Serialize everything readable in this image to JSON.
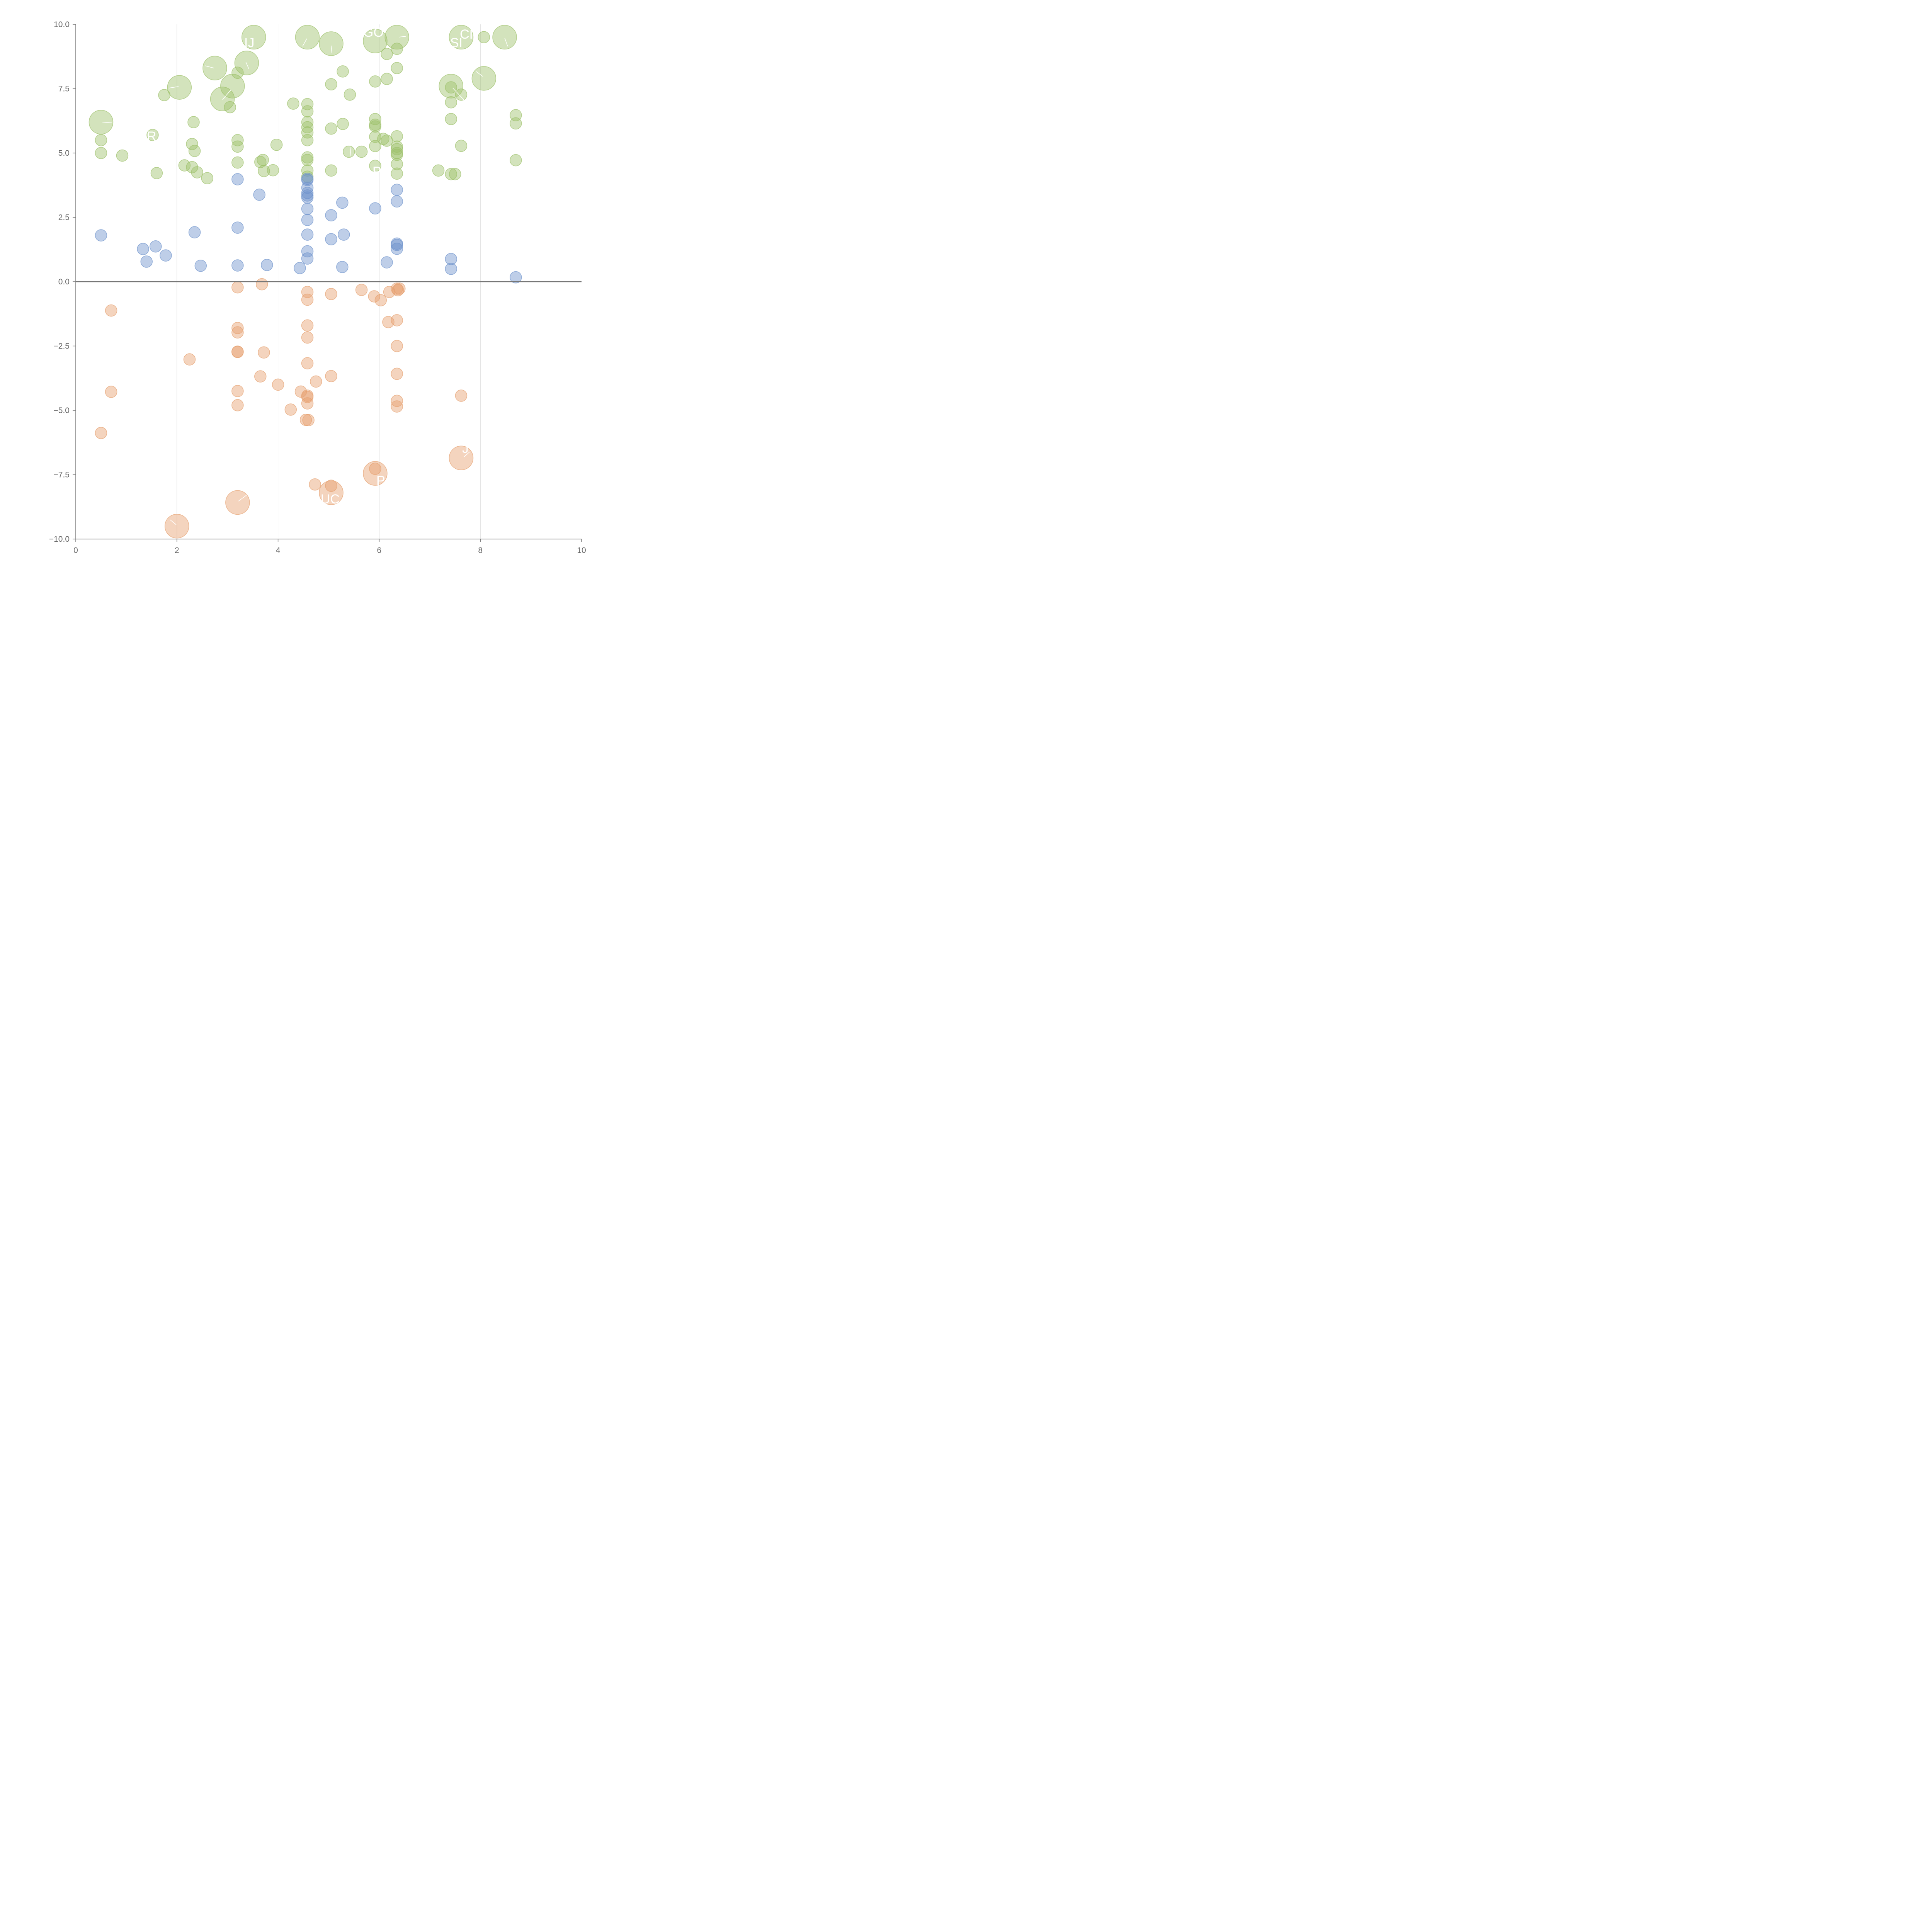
{
  "chart_data": {
    "type": "scatter",
    "title": "",
    "xlabel": "",
    "ylabel": "",
    "xlim": [
      0,
      10
    ],
    "ylim": [
      -10,
      10
    ],
    "x_ticks": [
      0,
      2,
      4,
      6,
      8,
      10
    ],
    "y_ticks": [
      -10.0,
      -7.5,
      -5.0,
      -2.5,
      0.0,
      2.5,
      5.0,
      7.5,
      10.0
    ],
    "x_tick_labels": [
      "0",
      "2",
      "4",
      "6",
      "8",
      "10"
    ],
    "y_tick_labels": [
      "−10.0",
      "−7.5",
      "−5.0",
      "−2.5",
      "0.0",
      "2.5",
      "5.0",
      "7.5",
      "10.0"
    ],
    "vertical_gridlines_at": [
      2,
      4,
      6,
      8
    ],
    "zero_line": true,
    "legend": "none",
    "colors": {
      "green": "#9dc06a",
      "blue": "#6e93cc",
      "orange": "#e6a06e"
    },
    "series": [
      {
        "color": "green",
        "points": [
          {
            "x": 0.5,
            "y": 6.2,
            "big": true
          },
          {
            "x": 2.05,
            "y": 7.55,
            "big": true
          },
          {
            "x": 2.75,
            "y": 8.3,
            "big": true
          },
          {
            "x": 2.9,
            "y": 7.1,
            "big": true
          },
          {
            "x": 3.1,
            "y": 7.6,
            "big": true
          },
          {
            "x": 3.38,
            "y": 8.5,
            "big": true
          },
          {
            "x": 3.52,
            "y": 9.5,
            "big": true
          },
          {
            "x": 4.58,
            "y": 9.5,
            "big": true
          },
          {
            "x": 5.05,
            "y": 9.25,
            "big": true
          },
          {
            "x": 5.92,
            "y": 9.35,
            "big": true
          },
          {
            "x": 6.35,
            "y": 9.5,
            "big": true
          },
          {
            "x": 7.62,
            "y": 9.5,
            "big": true
          },
          {
            "x": 8.48,
            "y": 9.5,
            "big": true
          },
          {
            "x": 7.42,
            "y": 7.6,
            "big": true
          },
          {
            "x": 8.07,
            "y": 7.9,
            "big": true
          },
          {
            "x": 0.5,
            "y": 5.5
          },
          {
            "x": 0.5,
            "y": 5.0
          },
          {
            "x": 0.92,
            "y": 4.9
          },
          {
            "x": 1.6,
            "y": 4.22
          },
          {
            "x": 1.52,
            "y": 5.7
          },
          {
            "x": 1.75,
            "y": 7.25
          },
          {
            "x": 2.15,
            "y": 4.52
          },
          {
            "x": 2.3,
            "y": 5.35
          },
          {
            "x": 2.3,
            "y": 4.45
          },
          {
            "x": 2.33,
            "y": 6.2
          },
          {
            "x": 2.35,
            "y": 5.08
          },
          {
            "x": 2.4,
            "y": 4.25
          },
          {
            "x": 2.6,
            "y": 4.02
          },
          {
            "x": 3.05,
            "y": 6.78
          },
          {
            "x": 3.2,
            "y": 8.12
          },
          {
            "x": 3.2,
            "y": 5.5
          },
          {
            "x": 3.2,
            "y": 5.25
          },
          {
            "x": 3.2,
            "y": 4.63
          },
          {
            "x": 3.65,
            "y": 4.65
          },
          {
            "x": 3.7,
            "y": 4.73
          },
          {
            "x": 3.72,
            "y": 4.3
          },
          {
            "x": 3.9,
            "y": 4.33
          },
          {
            "x": 3.97,
            "y": 5.32
          },
          {
            "x": 4.3,
            "y": 6.92
          },
          {
            "x": 4.58,
            "y": 6.9
          },
          {
            "x": 4.58,
            "y": 6.62
          },
          {
            "x": 4.58,
            "y": 6.2
          },
          {
            "x": 4.58,
            "y": 6.0
          },
          {
            "x": 4.58,
            "y": 5.8
          },
          {
            "x": 4.58,
            "y": 5.5
          },
          {
            "x": 4.58,
            "y": 4.83
          },
          {
            "x": 4.58,
            "y": 4.73
          },
          {
            "x": 4.58,
            "y": 4.32
          },
          {
            "x": 4.58,
            "y": 4.08
          },
          {
            "x": 5.05,
            "y": 7.67
          },
          {
            "x": 5.05,
            "y": 5.95
          },
          {
            "x": 5.05,
            "y": 4.32
          },
          {
            "x": 5.28,
            "y": 8.17
          },
          {
            "x": 5.28,
            "y": 6.13
          },
          {
            "x": 5.42,
            "y": 7.27
          },
          {
            "x": 5.4,
            "y": 5.05
          },
          {
            "x": 5.65,
            "y": 5.05
          },
          {
            "x": 5.92,
            "y": 7.78
          },
          {
            "x": 5.92,
            "y": 6.32
          },
          {
            "x": 5.92,
            "y": 6.1
          },
          {
            "x": 5.92,
            "y": 6.03
          },
          {
            "x": 5.92,
            "y": 5.63
          },
          {
            "x": 5.92,
            "y": 5.27
          },
          {
            "x": 5.92,
            "y": 4.5
          },
          {
            "x": 6.08,
            "y": 5.55
          },
          {
            "x": 6.15,
            "y": 5.48
          },
          {
            "x": 6.15,
            "y": 7.88
          },
          {
            "x": 6.15,
            "y": 8.85
          },
          {
            "x": 6.35,
            "y": 9.05
          },
          {
            "x": 6.35,
            "y": 8.3
          },
          {
            "x": 6.35,
            "y": 5.65
          },
          {
            "x": 6.35,
            "y": 5.25
          },
          {
            "x": 6.35,
            "y": 5.15
          },
          {
            "x": 6.35,
            "y": 5.0
          },
          {
            "x": 6.35,
            "y": 4.93
          },
          {
            "x": 6.35,
            "y": 4.57
          },
          {
            "x": 6.35,
            "y": 4.2
          },
          {
            "x": 7.17,
            "y": 4.32
          },
          {
            "x": 7.42,
            "y": 7.55
          },
          {
            "x": 7.42,
            "y": 6.97
          },
          {
            "x": 7.42,
            "y": 6.32
          },
          {
            "x": 7.42,
            "y": 4.18
          },
          {
            "x": 7.5,
            "y": 4.18
          },
          {
            "x": 7.62,
            "y": 7.27
          },
          {
            "x": 7.62,
            "y": 5.28
          },
          {
            "x": 8.07,
            "y": 9.5
          },
          {
            "x": 8.7,
            "y": 6.47
          },
          {
            "x": 8.7,
            "y": 6.15
          },
          {
            "x": 8.7,
            "y": 4.72
          }
        ]
      },
      {
        "color": "blue",
        "points": [
          {
            "x": 0.5,
            "y": 1.8
          },
          {
            "x": 1.33,
            "y": 1.27
          },
          {
            "x": 1.4,
            "y": 0.78
          },
          {
            "x": 1.58,
            "y": 1.37
          },
          {
            "x": 1.78,
            "y": 1.02
          },
          {
            "x": 2.35,
            "y": 1.92
          },
          {
            "x": 2.47,
            "y": 0.62
          },
          {
            "x": 3.2,
            "y": 3.98
          },
          {
            "x": 3.2,
            "y": 2.1
          },
          {
            "x": 3.2,
            "y": 0.63
          },
          {
            "x": 3.63,
            "y": 3.38
          },
          {
            "x": 3.78,
            "y": 0.65
          },
          {
            "x": 4.43,
            "y": 0.53
          },
          {
            "x": 4.58,
            "y": 4.0
          },
          {
            "x": 4.58,
            "y": 3.95
          },
          {
            "x": 4.58,
            "y": 3.65
          },
          {
            "x": 4.58,
            "y": 3.45
          },
          {
            "x": 4.58,
            "y": 3.35
          },
          {
            "x": 4.58,
            "y": 3.27
          },
          {
            "x": 4.58,
            "y": 2.83
          },
          {
            "x": 4.58,
            "y": 2.4
          },
          {
            "x": 4.58,
            "y": 1.83
          },
          {
            "x": 4.58,
            "y": 1.18
          },
          {
            "x": 4.58,
            "y": 0.9
          },
          {
            "x": 5.05,
            "y": 2.58
          },
          {
            "x": 5.05,
            "y": 1.65
          },
          {
            "x": 5.27,
            "y": 3.07
          },
          {
            "x": 5.3,
            "y": 1.83
          },
          {
            "x": 5.27,
            "y": 0.57
          },
          {
            "x": 5.92,
            "y": 2.85
          },
          {
            "x": 6.15,
            "y": 0.75
          },
          {
            "x": 6.35,
            "y": 3.57
          },
          {
            "x": 6.35,
            "y": 3.12
          },
          {
            "x": 6.35,
            "y": 1.48
          },
          {
            "x": 6.35,
            "y": 1.43
          },
          {
            "x": 6.35,
            "y": 1.28
          },
          {
            "x": 7.42,
            "y": 0.88
          },
          {
            "x": 7.42,
            "y": 0.5
          },
          {
            "x": 8.7,
            "y": 0.17
          }
        ]
      },
      {
        "color": "orange",
        "points": [
          {
            "x": 2.0,
            "y": -9.5,
            "big": true
          },
          {
            "x": 3.2,
            "y": -8.58,
            "big": true
          },
          {
            "x": 5.05,
            "y": -8.2,
            "big": true
          },
          {
            "x": 5.92,
            "y": -7.45,
            "big": true
          },
          {
            "x": 7.62,
            "y": -6.85,
            "big": true
          },
          {
            "x": 0.7,
            "y": -1.12
          },
          {
            "x": 0.7,
            "y": -4.28
          },
          {
            "x": 0.5,
            "y": -5.88
          },
          {
            "x": 2.25,
            "y": -3.02
          },
          {
            "x": 3.2,
            "y": -0.22
          },
          {
            "x": 3.2,
            "y": -1.8
          },
          {
            "x": 3.2,
            "y": -1.97
          },
          {
            "x": 3.2,
            "y": -2.72
          },
          {
            "x": 3.2,
            "y": -2.73
          },
          {
            "x": 3.2,
            "y": -4.25
          },
          {
            "x": 3.2,
            "y": -4.8
          },
          {
            "x": 3.68,
            "y": -0.1
          },
          {
            "x": 3.65,
            "y": -3.68
          },
          {
            "x": 3.72,
            "y": -2.75
          },
          {
            "x": 4.0,
            "y": -4.0
          },
          {
            "x": 4.25,
            "y": -4.97
          },
          {
            "x": 4.45,
            "y": -4.27
          },
          {
            "x": 4.58,
            "y": -0.4
          },
          {
            "x": 4.58,
            "y": -0.7
          },
          {
            "x": 4.58,
            "y": -1.7
          },
          {
            "x": 4.58,
            "y": -2.17
          },
          {
            "x": 4.58,
            "y": -3.17
          },
          {
            "x": 4.58,
            "y": -4.43
          },
          {
            "x": 4.58,
            "y": -4.48
          },
          {
            "x": 4.58,
            "y": -4.73
          },
          {
            "x": 4.55,
            "y": -5.37
          },
          {
            "x": 4.6,
            "y": -5.38
          },
          {
            "x": 4.75,
            "y": -3.88
          },
          {
            "x": 4.73,
            "y": -7.88
          },
          {
            "x": 5.05,
            "y": -0.48
          },
          {
            "x": 5.05,
            "y": -3.67
          },
          {
            "x": 5.05,
            "y": -7.93
          },
          {
            "x": 5.65,
            "y": -0.32
          },
          {
            "x": 5.9,
            "y": -0.57
          },
          {
            "x": 6.03,
            "y": -0.72
          },
          {
            "x": 5.92,
            "y": -7.27
          },
          {
            "x": 6.18,
            "y": -1.57
          },
          {
            "x": 6.2,
            "y": -0.4
          },
          {
            "x": 6.35,
            "y": -0.27
          },
          {
            "x": 6.37,
            "y": -0.33
          },
          {
            "x": 6.4,
            "y": -0.27
          },
          {
            "x": 6.35,
            "y": -1.5
          },
          {
            "x": 6.35,
            "y": -2.5
          },
          {
            "x": 6.35,
            "y": -3.58
          },
          {
            "x": 6.35,
            "y": -4.63
          },
          {
            "x": 6.35,
            "y": -4.85
          },
          {
            "x": 7.62,
            "y": -4.43
          }
        ]
      }
    ]
  }
}
